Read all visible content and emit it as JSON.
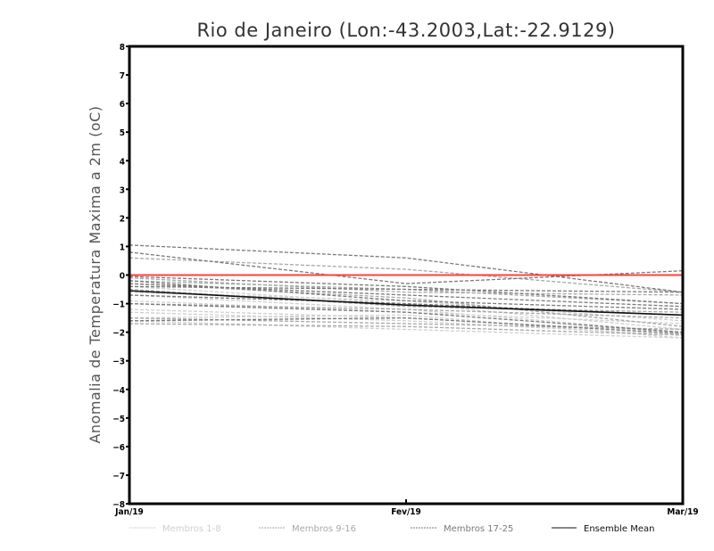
{
  "chart_data": {
    "type": "line",
    "title": "Rio de Janeiro (Lon:-43.2003,Lat:-22.9129)",
    "xlabel": "",
    "ylabel": "Anomalia de Temperatura Maxima a 2m (oC)",
    "categories": [
      "Jan/19",
      "Fev/19",
      "Mar/19"
    ],
    "ylim": [
      -8,
      8
    ],
    "yticks": [
      -8,
      -7,
      -6,
      -5,
      -4,
      -3,
      -2,
      -1,
      0,
      1,
      2,
      3,
      4,
      5,
      6,
      7,
      8
    ],
    "grid": false,
    "reference_line": {
      "value": 0,
      "color": "#ff4040"
    },
    "groups": [
      {
        "name": "Membros 1-8",
        "color": "#cfcfcf",
        "style": "dashed",
        "series": [
          [
            -1.5,
            -1.4,
            -2.2
          ],
          [
            -1.3,
            -1.6,
            -2.1
          ],
          [
            -0.7,
            -1.2,
            -2.0
          ],
          [
            -1.6,
            -1.9,
            -2.2
          ],
          [
            -0.9,
            -1.3,
            -1.7
          ],
          [
            -0.4,
            -1.0,
            -1.9
          ],
          [
            -1.2,
            -1.5,
            -2.0
          ],
          [
            -0.6,
            -0.9,
            -1.6
          ]
        ]
      },
      {
        "name": "Membros 9-16",
        "color": "#a8a8a8",
        "style": "dashed",
        "series": [
          [
            0.6,
            0.2,
            -0.6
          ],
          [
            -0.2,
            -0.5,
            -1.0
          ],
          [
            -0.5,
            -1.1,
            -1.3
          ],
          [
            -1.7,
            -1.8,
            -2.1
          ],
          [
            -0.3,
            -0.8,
            -1.8
          ],
          [
            -1.0,
            -1.2,
            -1.5
          ],
          [
            -0.1,
            -0.6,
            -0.7
          ],
          [
            -1.5,
            -1.7,
            -1.9
          ]
        ]
      },
      {
        "name": "Membros 17-25",
        "color": "#7a7a7a",
        "style": "dashed",
        "series": [
          [
            1.05,
            0.6,
            -0.6
          ],
          [
            0.8,
            -0.3,
            0.15
          ],
          [
            -0.05,
            -0.4,
            -1.0
          ],
          [
            -0.4,
            -0.5,
            -0.6
          ],
          [
            -1.0,
            -1.3,
            -2.0
          ],
          [
            -0.2,
            -0.9,
            -1.2
          ],
          [
            -0.7,
            -1.0,
            -1.4
          ],
          [
            -1.6,
            -1.5,
            -2.05
          ],
          [
            -0.3,
            -0.7,
            -1.1
          ]
        ]
      },
      {
        "name": "Ensemble Mean",
        "color": "#111111",
        "style": "solid",
        "series": [
          [
            -0.55,
            -1.05,
            -1.4
          ]
        ]
      }
    ],
    "legend_position": "bottom"
  }
}
